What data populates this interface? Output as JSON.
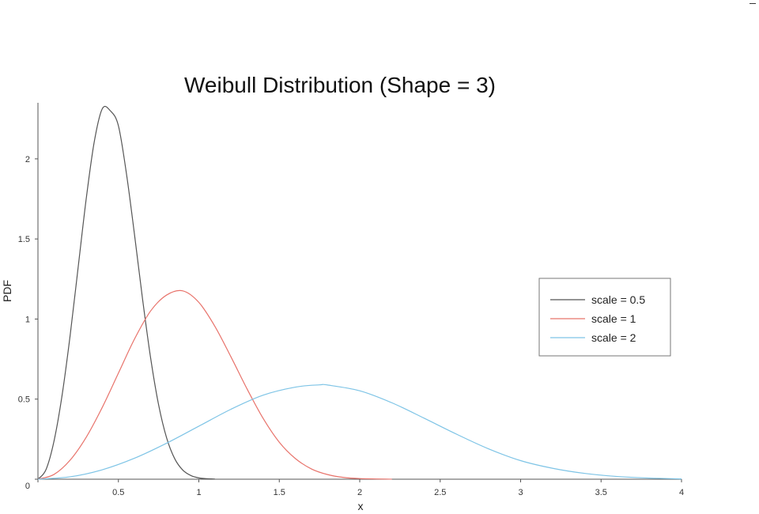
{
  "chart_data": {
    "type": "line",
    "title": "Weibull Distribution (Shape = 3)",
    "xlabel": "x",
    "ylabel": "PDF",
    "xlim": [
      0,
      4
    ],
    "ylim": [
      0,
      2.35
    ],
    "x_ticks": [
      0,
      0.5,
      1,
      1.5,
      2,
      2.5,
      3,
      3.5,
      4
    ],
    "x_tick_labels": [
      "",
      "0.5",
      "1",
      "1.5",
      "2",
      "2.5",
      "3",
      "3.5",
      "4"
    ],
    "y_ticks": [
      0,
      0.5,
      1,
      1.5,
      2
    ],
    "y_tick_labels": [
      "0",
      "0.5",
      "1",
      "1.5",
      "2"
    ],
    "grid": false,
    "legend_position": "right",
    "shape": 3,
    "series": [
      {
        "name": "scale = 0.5",
        "color": "#555555",
        "x": [
          0,
          0.05,
          0.1,
          0.15,
          0.2,
          0.25,
          0.3,
          0.35,
          0.4,
          0.45,
          0.5,
          0.55,
          0.6,
          0.65,
          0.7,
          0.75,
          0.8,
          0.85,
          0.9,
          0.95,
          1.0,
          1.05,
          1.1
        ],
        "y": [
          0,
          0.06,
          0.239,
          0.524,
          0.897,
          1.324,
          1.751,
          2.107,
          2.313,
          2.3,
          2.207,
          1.908,
          1.528,
          1.126,
          0.759,
          0.464,
          0.257,
          0.128,
          0.057,
          0.023,
          0.008,
          0.003,
          0.001
        ]
      },
      {
        "name": "scale = 1",
        "color": "#e8736b",
        "x": [
          0,
          0.1,
          0.2,
          0.3,
          0.4,
          0.5,
          0.6,
          0.7,
          0.8,
          0.9,
          1.0,
          1.1,
          1.2,
          1.3,
          1.4,
          1.5,
          1.6,
          1.7,
          1.8,
          1.9,
          2.0,
          2.2
        ],
        "y": [
          0,
          0.03,
          0.119,
          0.262,
          0.449,
          0.662,
          0.875,
          1.05,
          1.15,
          1.176,
          1.104,
          0.954,
          0.763,
          0.563,
          0.379,
          0.231,
          0.129,
          0.064,
          0.029,
          0.011,
          0.004,
          0.0003
        ]
      },
      {
        "name": "scale = 2",
        "color": "#7ec4e6",
        "x": [
          0,
          0.2,
          0.4,
          0.6,
          0.8,
          1.0,
          1.2,
          1.4,
          1.6,
          1.75,
          1.8,
          2.0,
          2.2,
          2.4,
          2.6,
          2.8,
          3.0,
          3.2,
          3.4,
          3.6,
          3.8,
          4.0
        ],
        "y": [
          0,
          0.015,
          0.059,
          0.131,
          0.225,
          0.331,
          0.437,
          0.525,
          0.575,
          0.589,
          0.588,
          0.552,
          0.477,
          0.381,
          0.282,
          0.19,
          0.116,
          0.068,
          0.036,
          0.017,
          0.007,
          0.002
        ]
      }
    ]
  }
}
